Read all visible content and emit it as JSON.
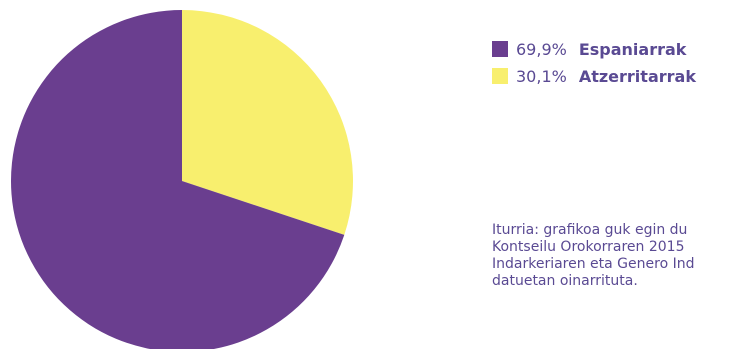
{
  "chart_data": {
    "type": "pie",
    "slices": [
      {
        "label": "Espaniarrak",
        "value": 69.9,
        "value_label": "69,9%",
        "color": "#6a3e8f"
      },
      {
        "label": "Atzerritarrak",
        "value": 30.1,
        "value_label": "30,1%",
        "color": "#f8ef6e"
      }
    ],
    "legend_position": "right"
  },
  "source_lines": [
    "Iturria: grafikoa guk egin du",
    "Kontseilu Orokorraren 2015",
    "Indarkeriaren eta Genero Ind",
    "datuetan oinarrituta."
  ]
}
